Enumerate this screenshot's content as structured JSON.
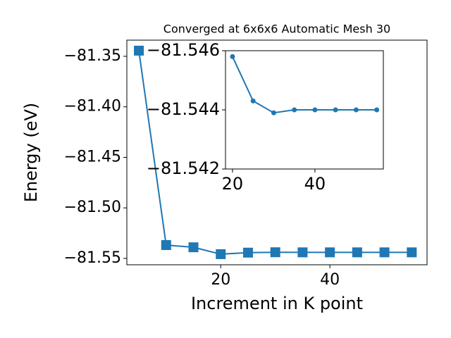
{
  "chart_data": [
    {
      "type": "line",
      "title": "Converged at 6x6x6 Automatic Mesh 30",
      "xlabel": "Increment in K point",
      "ylabel": "Energy (eV)",
      "x": [
        5,
        10,
        15,
        20,
        25,
        30,
        35,
        40,
        45,
        50,
        55
      ],
      "series": [
        {
          "color": "#1f77b4",
          "marker": "square",
          "values": [
            -81.3444,
            -81.5368,
            -81.539,
            -81.5458,
            -81.5443,
            -81.5439,
            -81.544,
            -81.544,
            -81.544,
            -81.544,
            -81.544
          ]
        }
      ],
      "xlim": [
        2.8,
        57.8
      ],
      "xticks": [
        20,
        40
      ],
      "ylim": [
        -81.5563,
        -81.334
      ],
      "yticks": [
        {
          "value": -81.55,
          "label": "−81.55"
        },
        {
          "value": -81.5,
          "label": "−81.50"
        },
        {
          "value": -81.45,
          "label": "−81.45"
        },
        {
          "value": -81.4,
          "label": "−81.40"
        },
        {
          "value": -81.35,
          "label": "−81.35"
        }
      ]
    },
    {
      "type": "line",
      "x": [
        20,
        25,
        30,
        35,
        40,
        45,
        50,
        55
      ],
      "series": [
        {
          "color": "#1f77b4",
          "marker": "circle",
          "values": [
            -81.5458,
            -81.5443,
            -81.5439,
            -81.544,
            -81.544,
            -81.544,
            -81.544,
            -81.544
          ]
        }
      ],
      "xlim": [
        18.3,
        56.6
      ],
      "xticks": [
        20,
        40
      ],
      "ylim": [
        -81.542,
        -81.546
      ],
      "yticks": [
        {
          "value": -81.546,
          "label": "−81.546"
        },
        {
          "value": -81.544,
          "label": "−81.544"
        },
        {
          "value": -81.542,
          "label": "−81.542"
        }
      ]
    }
  ]
}
